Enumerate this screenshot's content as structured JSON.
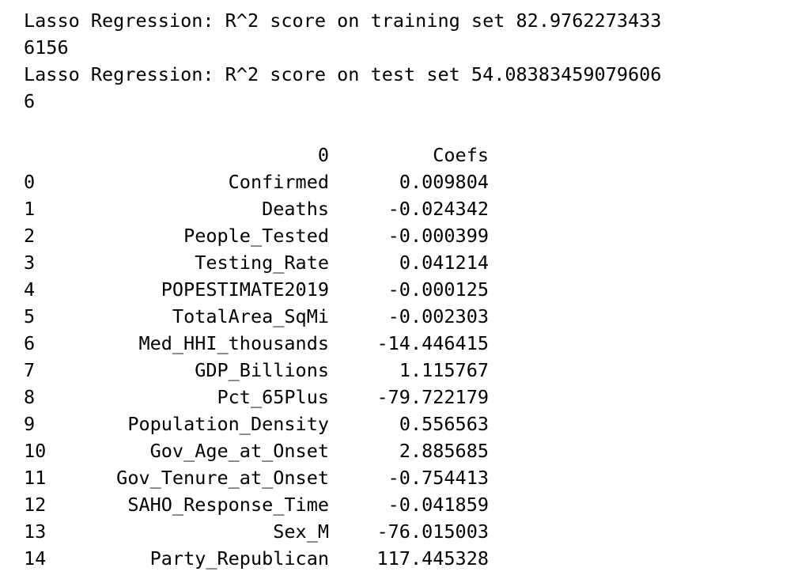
{
  "output_lines": [
    "Lasso Regression: R^2 score on training set 82.9762273433",
    "6156",
    "Lasso Regression: R^2 score on test set 54.08383459079606",
    "6"
  ],
  "table": {
    "headers": [
      "",
      "0",
      "Coefs"
    ],
    "rows": [
      {
        "idx": "0",
        "name": "Confirmed",
        "coef": "0.009804"
      },
      {
        "idx": "1",
        "name": "Deaths",
        "coef": "-0.024342"
      },
      {
        "idx": "2",
        "name": "People_Tested",
        "coef": "-0.000399"
      },
      {
        "idx": "3",
        "name": "Testing_Rate",
        "coef": "0.041214"
      },
      {
        "idx": "4",
        "name": "POPESTIMATE2019",
        "coef": "-0.000125"
      },
      {
        "idx": "5",
        "name": "TotalArea_SqMi",
        "coef": "-0.002303"
      },
      {
        "idx": "6",
        "name": "Med_HHI_thousands",
        "coef": "-14.446415"
      },
      {
        "idx": "7",
        "name": "GDP_Billions",
        "coef": "1.115767"
      },
      {
        "idx": "8",
        "name": "Pct_65Plus",
        "coef": "-79.722179"
      },
      {
        "idx": "9",
        "name": "Population_Density",
        "coef": "0.556563"
      },
      {
        "idx": "10",
        "name": "Gov_Age_at_Onset",
        "coef": "2.885685"
      },
      {
        "idx": "11",
        "name": "Gov_Tenure_at_Onset",
        "coef": "-0.754413"
      },
      {
        "idx": "12",
        "name": "SAHO_Response_Time",
        "coef": "-0.041859"
      },
      {
        "idx": "13",
        "name": "Sex_M",
        "coef": "-76.015003"
      },
      {
        "idx": "14",
        "name": "Party_Republican",
        "coef": "117.445328"
      }
    ]
  }
}
